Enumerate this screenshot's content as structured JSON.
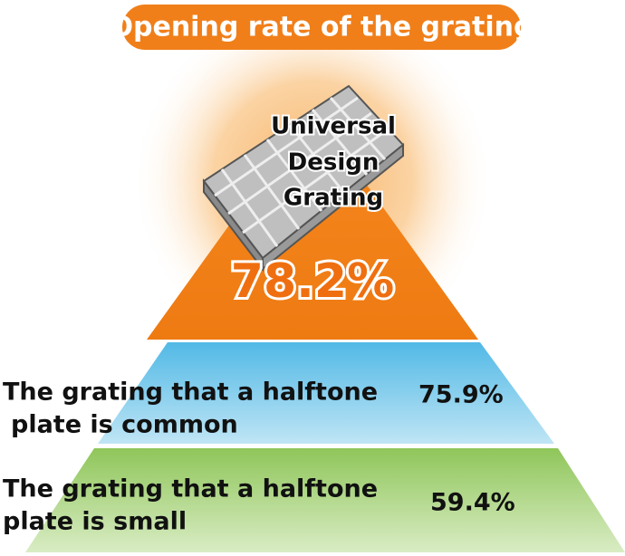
{
  "title": "Opening rate of the grating",
  "top": {
    "label": [
      "Universal",
      "Design",
      "Grating"
    ],
    "value": "78.2%"
  },
  "tiers": [
    {
      "label": [
        "The grating that a halftone",
        "plate is common"
      ],
      "value": "75.9%"
    },
    {
      "label": [
        "The grating that a halftone",
        "plate is small"
      ],
      "value": "59.4%"
    }
  ]
}
